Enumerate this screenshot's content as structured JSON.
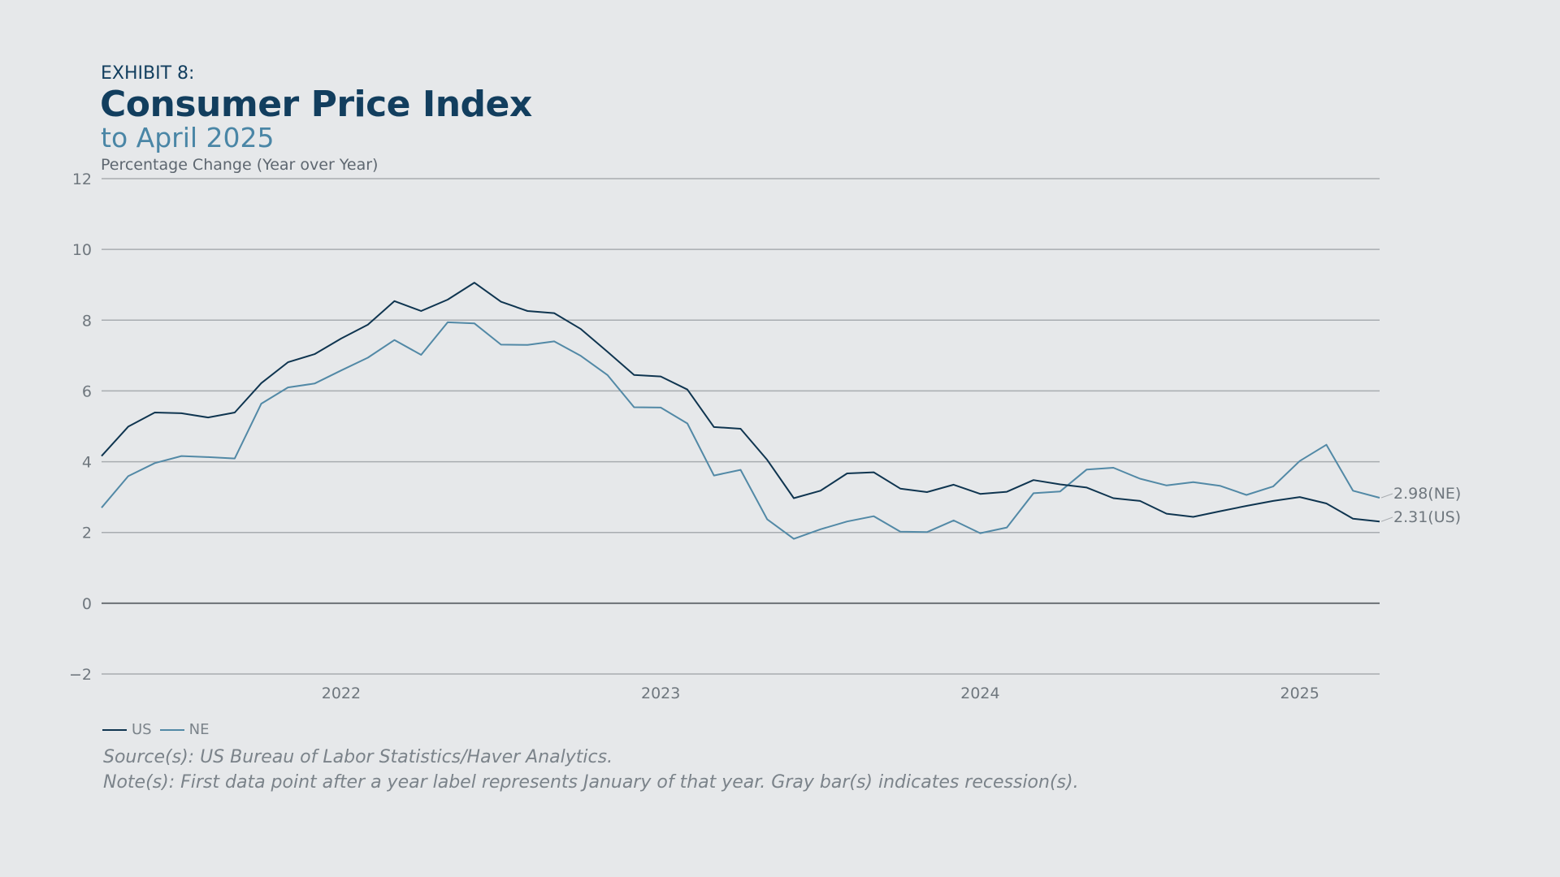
{
  "header": {
    "exhibit": "EXHIBIT 8:",
    "title": "Consumer Price Index",
    "subtitle": "to April 2025"
  },
  "footer": {
    "source": "Source(s): US Bureau of Labor Statistics/Haver Analytics.",
    "note": "Note(s): First data point after a year label represents January of that year. Gray bar(s) indicates recession(s)."
  },
  "colors": {
    "us": "#0f3550",
    "ne": "#5289a6",
    "grid": "#a8acb0",
    "zero": "#6b7075",
    "tick_text": "#6f777e"
  },
  "chart_data": {
    "type": "line",
    "title": "Consumer Price Index",
    "ylabel": "Percentage Change (Year over Year)",
    "ylim": [
      -2,
      12
    ],
    "yticks": [
      -2,
      0,
      2,
      4,
      6,
      8,
      10,
      12
    ],
    "x_tick_labels": [
      "2022",
      "2023",
      "2024",
      "2025"
    ],
    "x": [
      "2021-04",
      "2021-05",
      "2021-06",
      "2021-07",
      "2021-08",
      "2021-09",
      "2021-10",
      "2021-11",
      "2021-12",
      "2022-01",
      "2022-02",
      "2022-03",
      "2022-04",
      "2022-05",
      "2022-06",
      "2022-07",
      "2022-08",
      "2022-09",
      "2022-10",
      "2022-11",
      "2022-12",
      "2023-01",
      "2023-02",
      "2023-03",
      "2023-04",
      "2023-05",
      "2023-06",
      "2023-07",
      "2023-08",
      "2023-09",
      "2023-10",
      "2023-11",
      "2023-12",
      "2024-01",
      "2024-02",
      "2024-03",
      "2024-04",
      "2024-05",
      "2024-06",
      "2024-07",
      "2024-08",
      "2024-09",
      "2024-10",
      "2024-11",
      "2024-12",
      "2025-01",
      "2025-02",
      "2025-03",
      "2025-04"
    ],
    "series": [
      {
        "name": "US",
        "values": [
          4.16,
          4.99,
          5.39,
          5.37,
          5.25,
          5.39,
          6.22,
          6.81,
          7.04,
          7.48,
          7.87,
          8.54,
          8.26,
          8.58,
          9.06,
          8.52,
          8.26,
          8.2,
          7.75,
          7.11,
          6.45,
          6.41,
          6.04,
          4.98,
          4.93,
          4.05,
          2.97,
          3.18,
          3.67,
          3.7,
          3.24,
          3.14,
          3.35,
          3.09,
          3.15,
          3.48,
          3.36,
          3.27,
          2.97,
          2.89,
          2.53,
          2.44,
          2.6,
          2.75,
          2.89,
          3.0,
          2.82,
          2.39,
          2.31
        ]
      },
      {
        "name": "NE",
        "values": [
          2.7,
          3.59,
          3.96,
          4.16,
          4.13,
          4.09,
          5.64,
          6.1,
          6.21,
          6.58,
          6.94,
          7.44,
          7.02,
          7.94,
          7.91,
          7.31,
          7.3,
          7.4,
          6.99,
          6.45,
          5.54,
          5.53,
          5.08,
          3.61,
          3.77,
          2.37,
          1.82,
          2.09,
          2.31,
          2.46,
          2.02,
          2.01,
          2.34,
          1.98,
          2.14,
          3.11,
          3.16,
          3.78,
          3.83,
          3.52,
          3.33,
          3.42,
          3.32,
          3.06,
          3.3,
          4.02,
          4.48,
          3.18,
          2.98
        ]
      }
    ],
    "end_labels": [
      "2.98(NE)",
      "2.31(US)"
    ],
    "legend": {
      "position": "bottom-left",
      "entries": [
        "US",
        "NE"
      ]
    },
    "grid": true
  }
}
